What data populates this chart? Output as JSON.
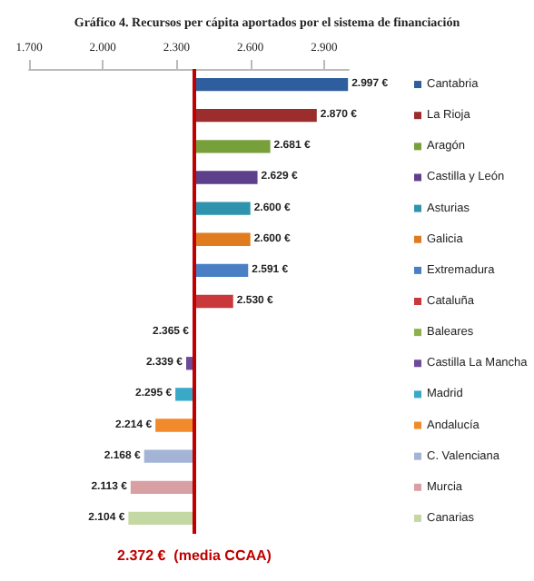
{
  "chart_data": {
    "type": "bar",
    "orientation": "horizontal",
    "title": "Gráfico 4. Recursos per cápita aportados por el sistema de financiación",
    "categories": [
      "Cantabria",
      "La Rioja",
      "Aragón",
      "Castilla y León",
      "Asturias",
      "Galicia",
      "Extremadura",
      "Cataluña",
      "Baleares",
      "Castilla La Mancha",
      "Madrid",
      "Andalucía",
      "C. Valenciana",
      "Murcia",
      "Canarias"
    ],
    "base": [
      2372,
      2372,
      2372,
      2372,
      2372,
      2372,
      2372,
      2372,
      2372,
      2372,
      2372,
      2372,
      2372,
      2372,
      2372
    ],
    "values": [
      625,
      498,
      309,
      257,
      228,
      228,
      219,
      158,
      -7,
      -33,
      -77,
      -158,
      -204,
      -259,
      -268
    ],
    "value_labels": [
      "2.997 €",
      "2.870 €",
      "2.681 €",
      "2.629 €",
      "2.600 €",
      "2.600 €",
      "2.591 €",
      "2.530 €",
      "2.365 €",
      "2.339 €",
      "2.295 €",
      "2.214 €",
      "2.168 €",
      "2.113 €",
      "2.104 €"
    ],
    "colors": [
      "#2e5e9e",
      "#9b2d2d",
      "#77a03a",
      "#5e3f8c",
      "#2f93ad",
      "#e07b20",
      "#4a7fc6",
      "#c9393c",
      "#8fb04c",
      "#6d4a9a",
      "#3aa9c8",
      "#f08a2a",
      "#a3b4d6",
      "#d9a0a3",
      "#c4d8a3"
    ],
    "xlim": [
      1700,
      3000
    ],
    "xticks": [
      {
        "value": 1700,
        "label": "1.700"
      },
      {
        "value": 2000,
        "label": "2.000"
      },
      {
        "value": 2300,
        "label": "2.300"
      },
      {
        "value": 2600,
        "label": "2.600"
      },
      {
        "value": 2900,
        "label": "2.900"
      }
    ],
    "ref_lines": [
      {
        "axis": "x",
        "value": 2372,
        "label": "2.372 €  (media CCAA)",
        "color": "#c00000"
      }
    ],
    "tick_labels": "x",
    "legend": "right",
    "grid": false
  }
}
